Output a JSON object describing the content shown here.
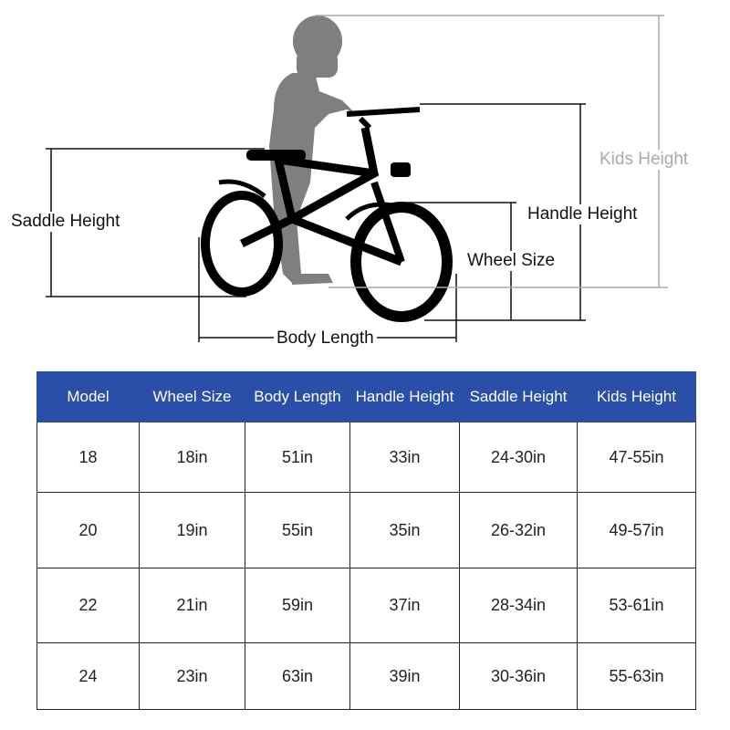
{
  "diagram": {
    "labels": {
      "saddle_height": "Saddle Height",
      "kids_height": "Kids Height",
      "handle_height": "Handle Height",
      "wheel_size": "Wheel Size",
      "body_length": "Body Length"
    },
    "colors": {
      "silhouette": "#7f7f7f",
      "bike": "#000000",
      "kids_height_line": "#aaaaaa"
    }
  },
  "table": {
    "header_color": "#2a4fa8",
    "columns": [
      "Model",
      "Wheel Size",
      "Body Length",
      "Handle Height",
      "Saddle Height",
      "Kids Height"
    ],
    "rows": [
      [
        "18",
        "18in",
        "51in",
        "33in",
        "24-30in",
        "47-55in"
      ],
      [
        "20",
        "19in",
        "55in",
        "35in",
        "26-32in",
        "49-57in"
      ],
      [
        "22",
        "21in",
        "59in",
        "37in",
        "28-34in",
        "53-61in"
      ],
      [
        "24",
        "23in",
        "63in",
        "39in",
        "30-36in",
        "55-63in"
      ]
    ]
  }
}
